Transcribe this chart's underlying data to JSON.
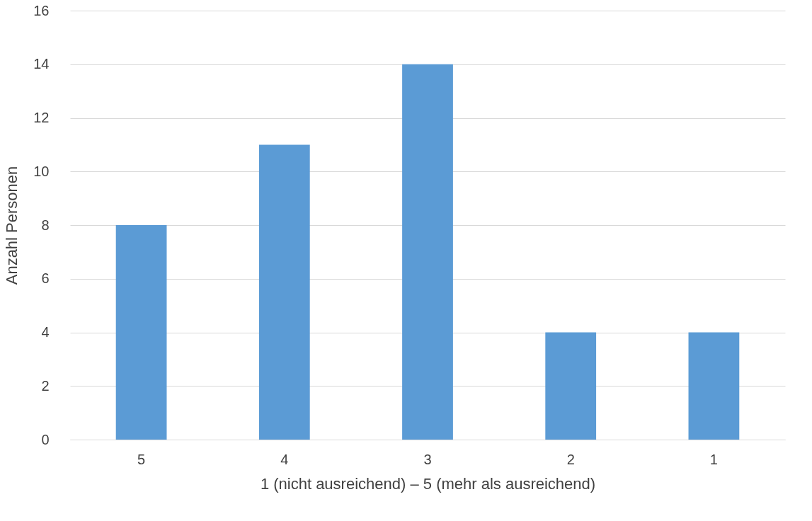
{
  "chart_data": {
    "type": "bar",
    "xlabel": "1 (nicht ausreichend) – 5 (mehr als ausreichend)",
    "ylabel": "Anzahl Personen",
    "categories": [
      "5",
      "4",
      "3",
      "2",
      "1"
    ],
    "values": [
      8,
      11,
      14,
      4,
      4
    ],
    "color": "#5b9bd5",
    "ylim": [
      0,
      16
    ],
    "yticks": [
      0,
      2,
      4,
      6,
      8,
      10,
      12,
      14,
      16
    ],
    "grid": "y"
  }
}
